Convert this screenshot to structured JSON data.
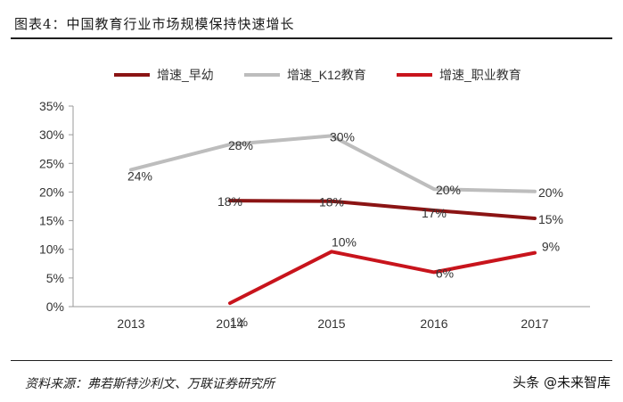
{
  "header": {
    "title": "图表4：中国教育行业市场规模保持快速增长"
  },
  "footer": {
    "source": "资料来源：弗若斯特沙利文、万联证券研究所",
    "watermark": "头条 @未来智库"
  },
  "chart_data": {
    "type": "line",
    "categories": [
      "2013",
      "2014",
      "2015",
      "2016",
      "2017"
    ],
    "y_ticks": [
      "35%",
      "30%",
      "25%",
      "20%",
      "15%",
      "10%",
      "5%",
      "0%"
    ],
    "ylim": [
      0,
      35
    ],
    "y_step": 5,
    "grid": false,
    "legend_position": "top",
    "series": [
      {
        "name": "增速_早幼",
        "color": "#8b1414",
        "values": [
          null,
          18.5,
          18.4,
          16.8,
          15.4
        ],
        "labels": [
          null,
          "18%",
          "18%",
          "17%",
          "15%"
        ]
      },
      {
        "name": "增速_K12教育",
        "color": "#bdbdbd",
        "values": [
          23.9,
          28.3,
          29.8,
          20.5,
          20.1
        ],
        "labels": [
          "24%",
          "28%",
          "30%",
          "20%",
          "20%"
        ]
      },
      {
        "name": "增速_职业教育",
        "color": "#c8141c",
        "values": [
          null,
          0.6,
          9.6,
          6.0,
          9.4
        ],
        "labels": [
          null,
          "1%",
          "10%",
          "6%",
          "9%"
        ]
      }
    ]
  }
}
